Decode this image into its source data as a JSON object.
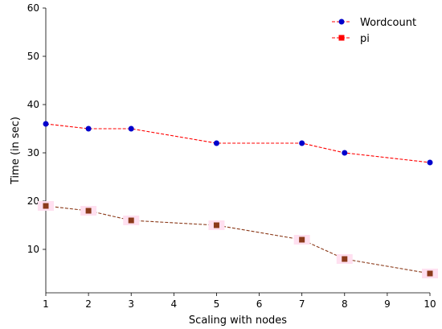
{
  "chart_data": {
    "type": "line",
    "title": "",
    "xlabel": "Scaling with nodes",
    "ylabel": "Time (in sec)",
    "x_tick_labels": [
      "1",
      "2",
      "3",
      "4",
      "5",
      "6",
      "7",
      "8",
      "9",
      "10"
    ],
    "y_tick_labels": [
      "10",
      "20",
      "30",
      "40",
      "50",
      "60"
    ],
    "xlim": [
      1,
      10
    ],
    "ylim": [
      1,
      60
    ],
    "grid": false,
    "legend": "top-right",
    "series": [
      {
        "name": "Wordcount",
        "color": "#ff0000",
        "marker_color": "#0000cc",
        "marker": "circle",
        "x": [
          1,
          2,
          3,
          5,
          7,
          8,
          10
        ],
        "y": [
          36,
          35,
          35,
          32,
          32,
          30,
          28
        ]
      },
      {
        "name": "pi",
        "color": "#8b3a1a",
        "marker_color": "#8b3a1a",
        "legend_color": "#ff0000",
        "marker": "square",
        "x": [
          1,
          2,
          3,
          5,
          7,
          8,
          10
        ],
        "y": [
          19,
          18,
          16,
          15,
          12,
          8,
          5
        ]
      }
    ]
  }
}
